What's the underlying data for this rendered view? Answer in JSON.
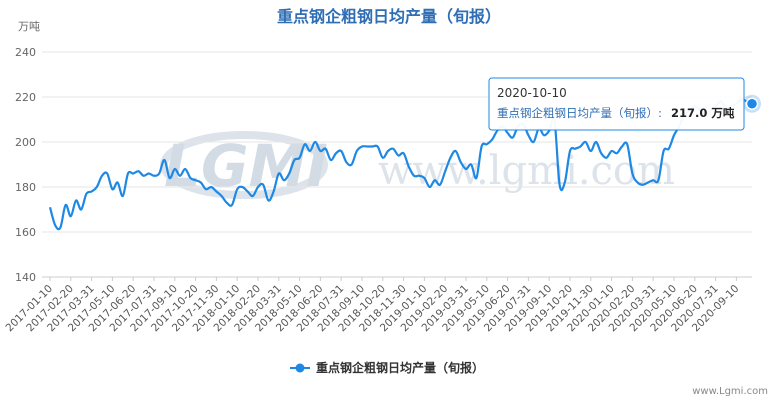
{
  "chart_data": {
    "type": "line",
    "title": "重点钢企粗钢日均产量（旬报）",
    "unit": "万吨",
    "ylim": [
      140,
      240
    ],
    "yticks": [
      140,
      160,
      180,
      200,
      220,
      240
    ],
    "grid": true,
    "legend_position": "bottom-center",
    "x": [
      "2017-01-10",
      "2017-01-20",
      "2017-01-31",
      "2017-02-10",
      "2017-02-20",
      "2017-02-28",
      "2017-03-10",
      "2017-03-20",
      "2017-03-31",
      "2017-04-10",
      "2017-04-20",
      "2017-04-30",
      "2017-05-10",
      "2017-05-20",
      "2017-05-31",
      "2017-06-10",
      "2017-06-20",
      "2017-06-30",
      "2017-07-10",
      "2017-07-20",
      "2017-07-31",
      "2017-08-10",
      "2017-08-20",
      "2017-08-31",
      "2017-09-10",
      "2017-09-20",
      "2017-09-30",
      "2017-10-10",
      "2017-10-20",
      "2017-10-31",
      "2017-11-10",
      "2017-11-20",
      "2017-11-30",
      "2017-12-10",
      "2017-12-20",
      "2017-12-31",
      "2018-01-10",
      "2018-01-20",
      "2018-01-31",
      "2018-02-10",
      "2018-02-20",
      "2018-02-28",
      "2018-03-10",
      "2018-03-20",
      "2018-03-31",
      "2018-04-10",
      "2018-04-20",
      "2018-04-30",
      "2018-05-10",
      "2018-05-20",
      "2018-05-31",
      "2018-06-10",
      "2018-06-20",
      "2018-06-30",
      "2018-07-10",
      "2018-07-20",
      "2018-07-31",
      "2018-08-10",
      "2018-08-20",
      "2018-08-31",
      "2018-09-10",
      "2018-09-20",
      "2018-09-30",
      "2018-10-10",
      "2018-10-20",
      "2018-10-31",
      "2018-11-10",
      "2018-11-20",
      "2018-11-30",
      "2018-12-10",
      "2018-12-20",
      "2018-12-31",
      "2019-01-10",
      "2019-01-20",
      "2019-01-31",
      "2019-02-10",
      "2019-02-20",
      "2019-02-28",
      "2019-03-10",
      "2019-03-20",
      "2019-03-31",
      "2019-04-10",
      "2019-04-20",
      "2019-04-30",
      "2019-05-10",
      "2019-05-20",
      "2019-05-31",
      "2019-06-10",
      "2019-06-20",
      "2019-06-30",
      "2019-07-10",
      "2019-07-20",
      "2019-07-31",
      "2019-08-10",
      "2019-08-20",
      "2019-08-31",
      "2019-09-10",
      "2019-09-20",
      "2019-09-30",
      "2019-10-10",
      "2019-10-20",
      "2019-10-31",
      "2019-11-10",
      "2019-11-20",
      "2019-11-30",
      "2019-12-10",
      "2019-12-20",
      "2019-12-31",
      "2020-01-10",
      "2020-01-20",
      "2020-01-31",
      "2020-02-10",
      "2020-02-20",
      "2020-02-29",
      "2020-03-10",
      "2020-03-20",
      "2020-03-31",
      "2020-04-10",
      "2020-04-20",
      "2020-04-30",
      "2020-05-10",
      "2020-05-20",
      "2020-05-31",
      "2020-06-10",
      "2020-06-20",
      "2020-06-30",
      "2020-07-10",
      "2020-07-20",
      "2020-07-31",
      "2020-08-10",
      "2020-08-20",
      "2020-08-31",
      "2020-09-10",
      "2020-09-20",
      "2020-09-30",
      "2020-10-10"
    ],
    "x_tick_labels": [
      "2017-01-10",
      "2017-02-20",
      "2017-03-31",
      "2017-05-10",
      "2017-06-20",
      "2017-07-31",
      "2017-09-10",
      "2017-10-20",
      "2017-11-30",
      "2018-01-10",
      "2018-02-20",
      "2018-03-31",
      "2018-05-10",
      "2018-06-20",
      "2018-07-31",
      "2018-09-10",
      "2018-10-20",
      "2018-11-30",
      "2019-01-10",
      "2019-02-20",
      "2019-03-31",
      "2019-05-10",
      "2019-06-20",
      "2019-07-31",
      "2019-09-10",
      "2019-10-20",
      "2019-11-30",
      "2020-01-10",
      "2020-02-20",
      "2020-03-31",
      "2020-05-10",
      "2020-06-20",
      "2020-07-31",
      "2020-09-10"
    ],
    "series": [
      {
        "name": "重点钢企粗钢日均产量（旬报）",
        "color": "#1e88e5",
        "values": [
          171,
          163,
          162,
          172,
          167,
          174,
          170,
          177,
          178,
          180,
          185,
          186,
          179,
          182,
          176,
          186,
          186,
          187,
          185,
          186,
          185,
          186,
          192,
          184,
          188,
          185,
          188,
          184,
          183,
          182,
          179,
          180,
          178,
          176,
          173,
          172,
          179,
          180,
          178,
          176,
          180,
          181,
          174,
          178,
          186,
          183,
          186,
          192,
          193,
          199,
          196,
          200,
          196,
          197,
          192,
          195,
          196,
          191,
          190,
          196,
          198,
          198,
          198,
          198,
          193,
          196,
          197,
          194,
          195,
          189,
          185,
          185,
          184,
          180,
          183,
          181,
          187,
          193,
          196,
          191,
          188,
          190,
          184,
          198,
          199,
          201,
          205,
          207,
          204,
          202,
          207,
          208,
          203,
          200,
          206,
          203,
          205,
          210,
          181,
          182,
          196,
          197,
          198,
          200,
          196,
          200,
          195,
          193,
          196,
          195,
          198,
          199,
          186,
          182,
          181,
          182,
          183,
          183,
          196,
          197,
          203,
          207,
          212,
          214,
          216,
          214,
          212,
          214,
          216,
          218,
          215,
          216,
          217,
          219,
          218,
          217
        ]
      }
    ],
    "tooltip": {
      "date": "2020-10-10",
      "series_label": "重点钢企粗钢日均产量（旬报）:",
      "value_label": "217.0 万吨"
    },
    "watermark": "LGMI",
    "watermark_url": "www.lgmi.com"
  },
  "footer": "www.Lgmi.com"
}
